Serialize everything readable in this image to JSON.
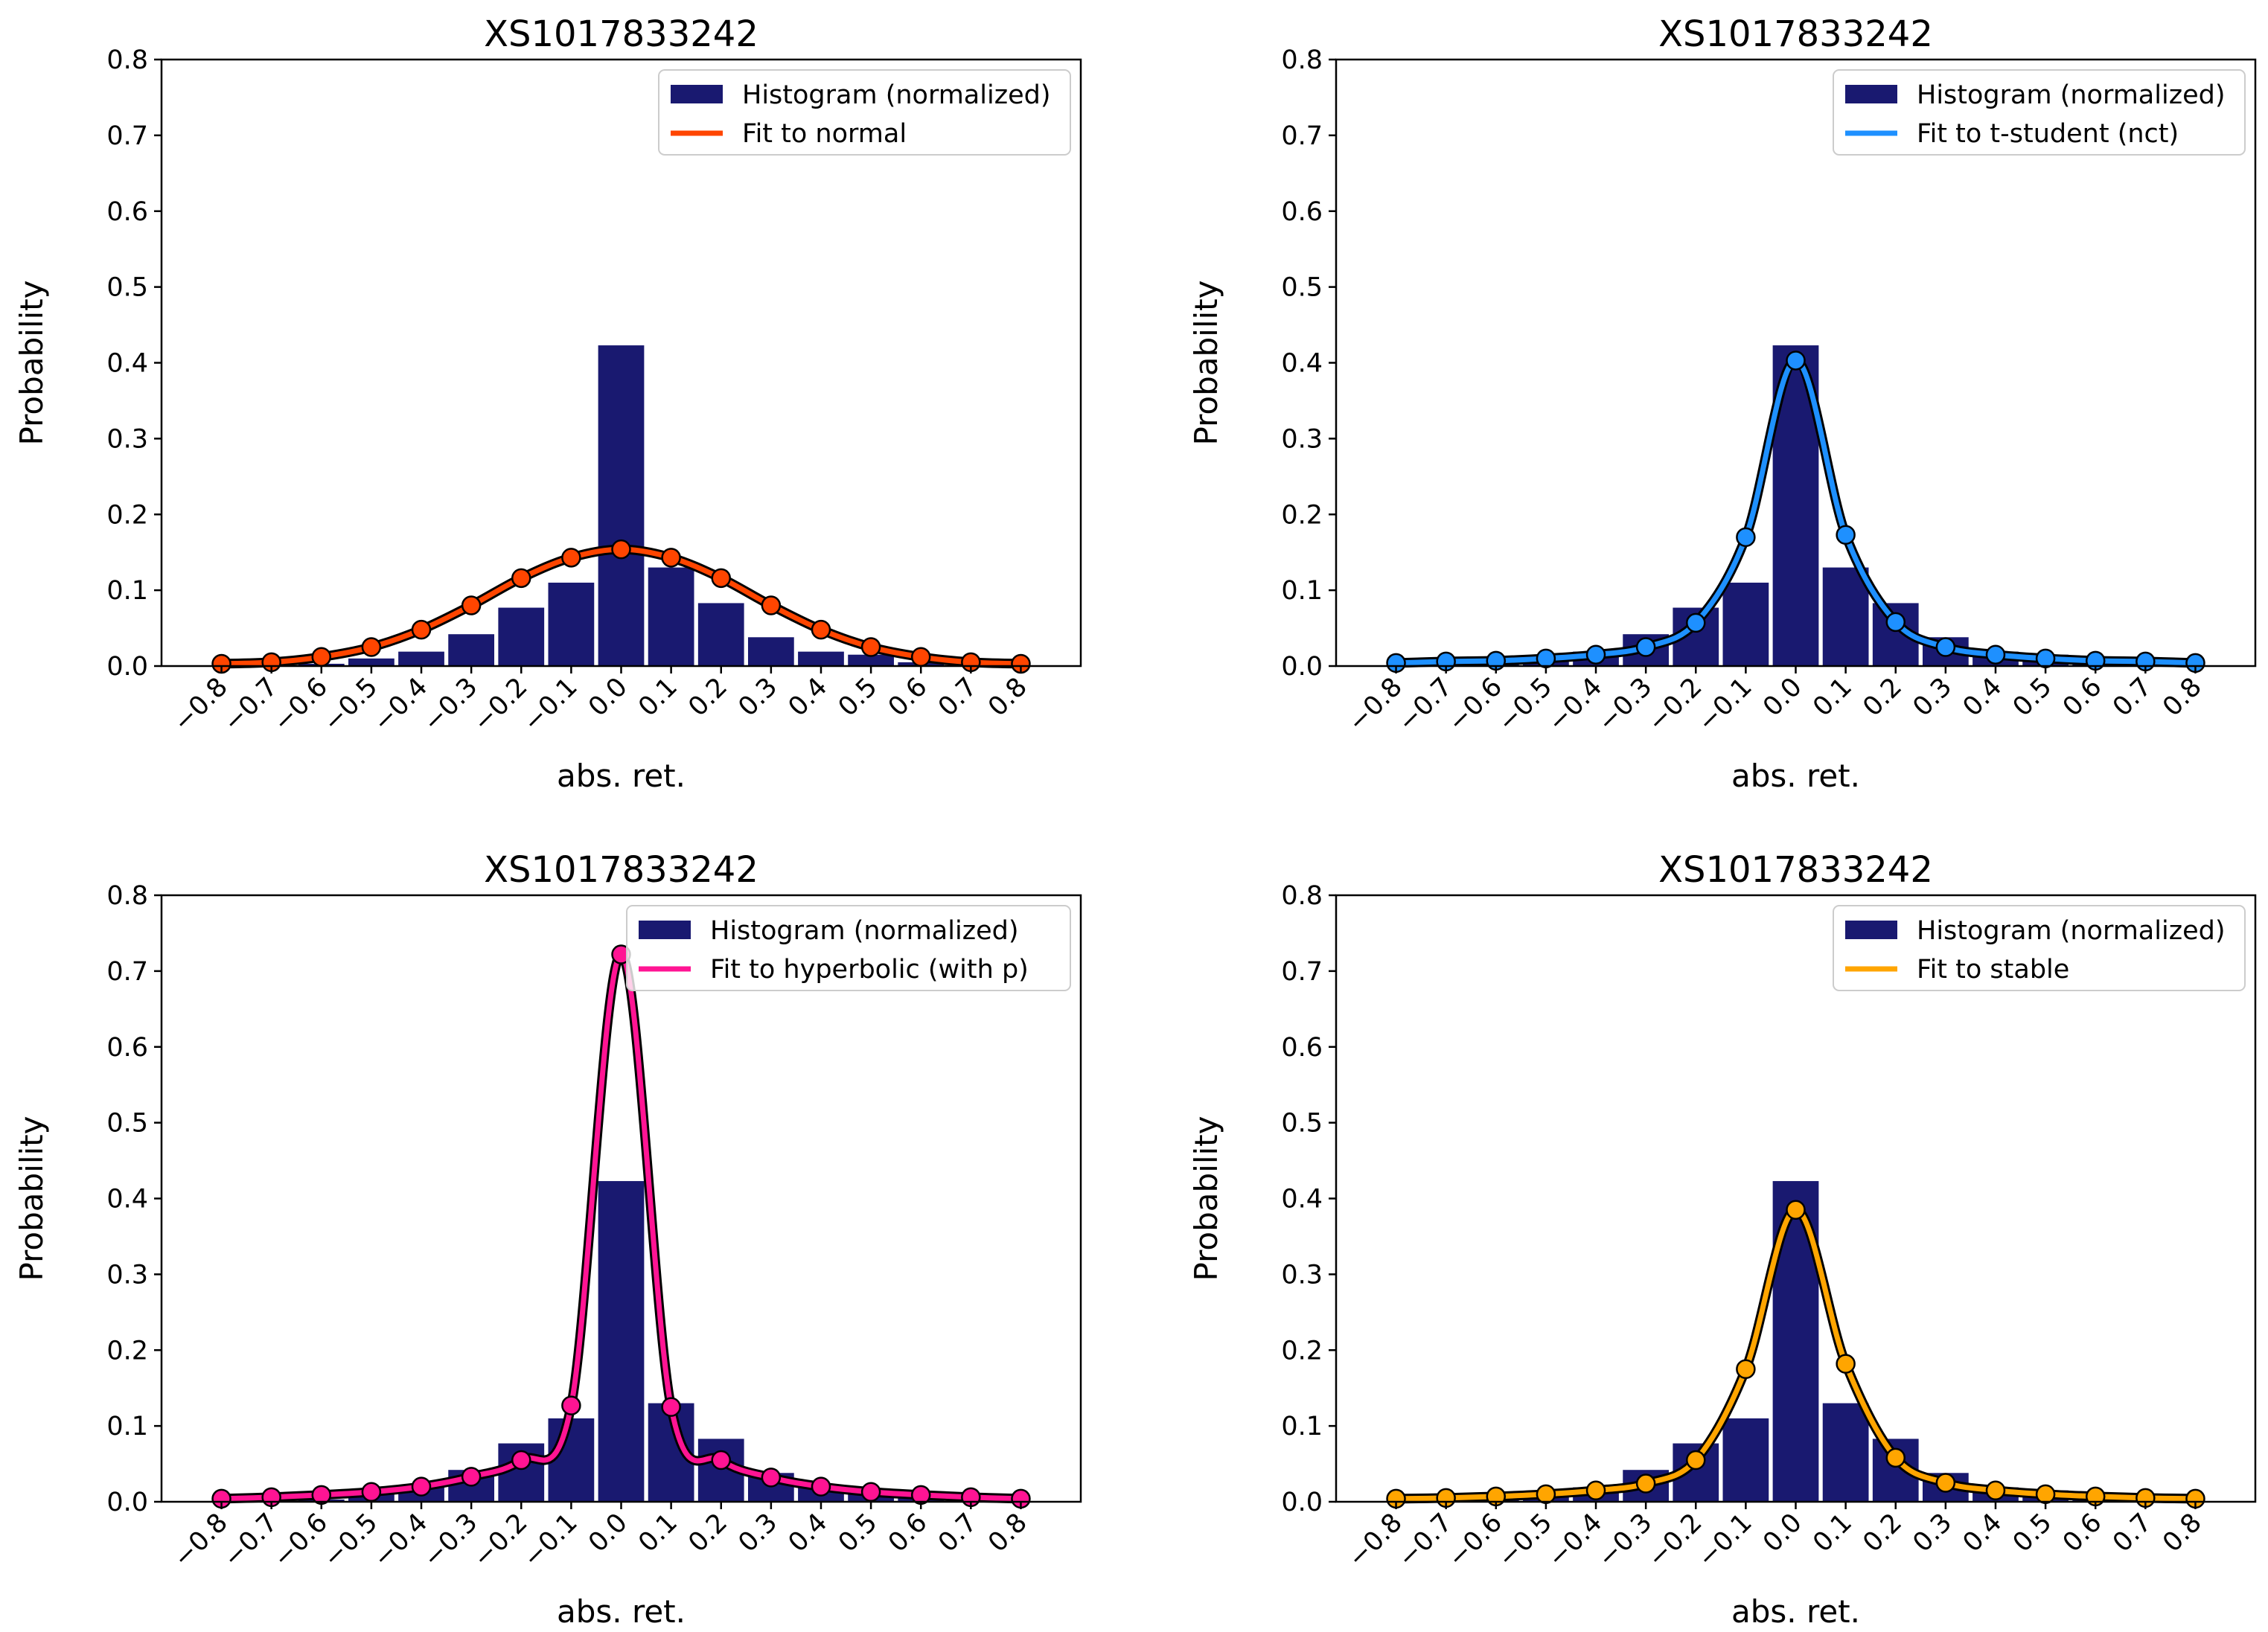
{
  "chart_data": [
    {
      "type": "bar",
      "title": "XS1017833242",
      "xlabel": "abs. ret.",
      "ylabel": "Probability",
      "xlim": [
        -0.92,
        0.92
      ],
      "ylim": [
        0,
        0.8
      ],
      "xticks": [
        "−0.8",
        "−0.7",
        "−0.6",
        "−0.5",
        "−0.4",
        "−0.3",
        "−0.2",
        "−0.1",
        "0.0",
        "0.1",
        "0.2",
        "0.3",
        "0.4",
        "0.5",
        "0.6",
        "0.7",
        "0.8"
      ],
      "yticks": [
        "0.0",
        "0.1",
        "0.2",
        "0.3",
        "0.4",
        "0.5",
        "0.6",
        "0.7",
        "0.8"
      ],
      "legend": {
        "position": "top-right",
        "entries": [
          "Histogram (normalized)",
          "Fit to normal"
        ]
      },
      "histogram": {
        "name": "Histogram (normalized)",
        "color": "#191970",
        "centers": [
          -0.6,
          -0.5,
          -0.4,
          -0.3,
          -0.2,
          -0.1,
          0.0,
          0.1,
          0.2,
          0.3,
          0.4,
          0.5,
          0.6
        ],
        "values": [
          0.003,
          0.01,
          0.019,
          0.042,
          0.077,
          0.11,
          0.423,
          0.13,
          0.083,
          0.038,
          0.019,
          0.015,
          0.005
        ]
      },
      "fit": {
        "name": "Fit to normal",
        "color": "#ff4500",
        "x": [
          -0.8,
          -0.7,
          -0.6,
          -0.5,
          -0.4,
          -0.3,
          -0.2,
          -0.1,
          0.0,
          0.1,
          0.2,
          0.3,
          0.4,
          0.5,
          0.6,
          0.7,
          0.8
        ],
        "y": [
          0.003,
          0.005,
          0.012,
          0.025,
          0.048,
          0.08,
          0.116,
          0.143,
          0.154,
          0.143,
          0.116,
          0.08,
          0.048,
          0.025,
          0.012,
          0.005,
          0.003
        ]
      }
    },
    {
      "type": "bar",
      "title": "XS1017833242",
      "xlabel": "abs. ret.",
      "ylabel": "Probability",
      "xlim": [
        -0.92,
        0.92
      ],
      "ylim": [
        0,
        0.8
      ],
      "xticks": [
        "−0.8",
        "−0.7",
        "−0.6",
        "−0.5",
        "−0.4",
        "−0.3",
        "−0.2",
        "−0.1",
        "0.0",
        "0.1",
        "0.2",
        "0.3",
        "0.4",
        "0.5",
        "0.6",
        "0.7",
        "0.8"
      ],
      "yticks": [
        "0.0",
        "0.1",
        "0.2",
        "0.3",
        "0.4",
        "0.5",
        "0.6",
        "0.7",
        "0.8"
      ],
      "legend": {
        "position": "top-right",
        "entries": [
          "Histogram (normalized)",
          "Fit to t-student (nct)"
        ]
      },
      "histogram": {
        "name": "Histogram (normalized)",
        "color": "#191970",
        "centers": [
          -0.6,
          -0.5,
          -0.4,
          -0.3,
          -0.2,
          -0.1,
          0.0,
          0.1,
          0.2,
          0.3,
          0.4,
          0.5,
          0.6
        ],
        "values": [
          0.003,
          0.01,
          0.019,
          0.042,
          0.077,
          0.11,
          0.423,
          0.13,
          0.083,
          0.038,
          0.019,
          0.015,
          0.005
        ]
      },
      "fit": {
        "name": "Fit to t-student (nct)",
        "color": "#1e90ff",
        "x": [
          -0.8,
          -0.7,
          -0.6,
          -0.5,
          -0.4,
          -0.3,
          -0.2,
          -0.1,
          0.0,
          0.1,
          0.2,
          0.3,
          0.4,
          0.5,
          0.6,
          0.7,
          0.8
        ],
        "y": [
          0.004,
          0.006,
          0.007,
          0.01,
          0.015,
          0.025,
          0.057,
          0.17,
          0.403,
          0.173,
          0.058,
          0.025,
          0.015,
          0.01,
          0.007,
          0.006,
          0.004
        ]
      }
    },
    {
      "type": "bar",
      "title": "XS1017833242",
      "xlabel": "abs. ret.",
      "ylabel": "Probability",
      "xlim": [
        -0.92,
        0.92
      ],
      "ylim": [
        0,
        0.8
      ],
      "xticks": [
        "−0.8",
        "−0.7",
        "−0.6",
        "−0.5",
        "−0.4",
        "−0.3",
        "−0.2",
        "−0.1",
        "0.0",
        "0.1",
        "0.2",
        "0.3",
        "0.4",
        "0.5",
        "0.6",
        "0.7",
        "0.8"
      ],
      "yticks": [
        "0.0",
        "0.1",
        "0.2",
        "0.3",
        "0.4",
        "0.5",
        "0.6",
        "0.7",
        "0.8"
      ],
      "legend": {
        "position": "top-right",
        "entries": [
          "Histogram (normalized)",
          "Fit to hyperbolic (with p)"
        ]
      },
      "histogram": {
        "name": "Histogram (normalized)",
        "color": "#191970",
        "centers": [
          -0.6,
          -0.5,
          -0.4,
          -0.3,
          -0.2,
          -0.1,
          0.0,
          0.1,
          0.2,
          0.3,
          0.4,
          0.5,
          0.6
        ],
        "values": [
          0.003,
          0.01,
          0.019,
          0.042,
          0.077,
          0.11,
          0.423,
          0.13,
          0.083,
          0.038,
          0.019,
          0.015,
          0.005
        ]
      },
      "fit": {
        "name": "Fit to hyperbolic (with p)",
        "color": "#ff1493",
        "x": [
          -0.8,
          -0.7,
          -0.6,
          -0.5,
          -0.4,
          -0.3,
          -0.2,
          -0.1,
          0.0,
          0.1,
          0.2,
          0.3,
          0.4,
          0.5,
          0.6,
          0.7,
          0.8
        ],
        "y": [
          0.004,
          0.006,
          0.009,
          0.013,
          0.02,
          0.033,
          0.055,
          0.127,
          0.722,
          0.125,
          0.055,
          0.032,
          0.02,
          0.013,
          0.009,
          0.006,
          0.004
        ]
      }
    },
    {
      "type": "bar",
      "title": "XS1017833242",
      "xlabel": "abs. ret.",
      "ylabel": "Probability",
      "xlim": [
        -0.92,
        0.92
      ],
      "ylim": [
        0,
        0.8
      ],
      "xticks": [
        "−0.8",
        "−0.7",
        "−0.6",
        "−0.5",
        "−0.4",
        "−0.3",
        "−0.2",
        "−0.1",
        "0.0",
        "0.1",
        "0.2",
        "0.3",
        "0.4",
        "0.5",
        "0.6",
        "0.7",
        "0.8"
      ],
      "yticks": [
        "0.0",
        "0.1",
        "0.2",
        "0.3",
        "0.4",
        "0.5",
        "0.6",
        "0.7",
        "0.8"
      ],
      "legend": {
        "position": "top-right",
        "entries": [
          "Histogram (normalized)",
          "Fit to stable"
        ]
      },
      "histogram": {
        "name": "Histogram (normalized)",
        "color": "#191970",
        "centers": [
          -0.6,
          -0.5,
          -0.4,
          -0.3,
          -0.2,
          -0.1,
          0.0,
          0.1,
          0.2,
          0.3,
          0.4,
          0.5,
          0.6
        ],
        "values": [
          0.003,
          0.01,
          0.019,
          0.042,
          0.077,
          0.11,
          0.423,
          0.13,
          0.083,
          0.038,
          0.019,
          0.015,
          0.005
        ]
      },
      "fit": {
        "name": "Fit to stable",
        "color": "#ffa500",
        "x": [
          -0.8,
          -0.7,
          -0.6,
          -0.5,
          -0.4,
          -0.3,
          -0.2,
          -0.1,
          0.0,
          0.1,
          0.2,
          0.3,
          0.4,
          0.5,
          0.6,
          0.7,
          0.8
        ],
        "y": [
          0.004,
          0.005,
          0.007,
          0.01,
          0.015,
          0.024,
          0.055,
          0.175,
          0.385,
          0.182,
          0.058,
          0.025,
          0.015,
          0.01,
          0.007,
          0.005,
          0.004
        ]
      }
    }
  ]
}
